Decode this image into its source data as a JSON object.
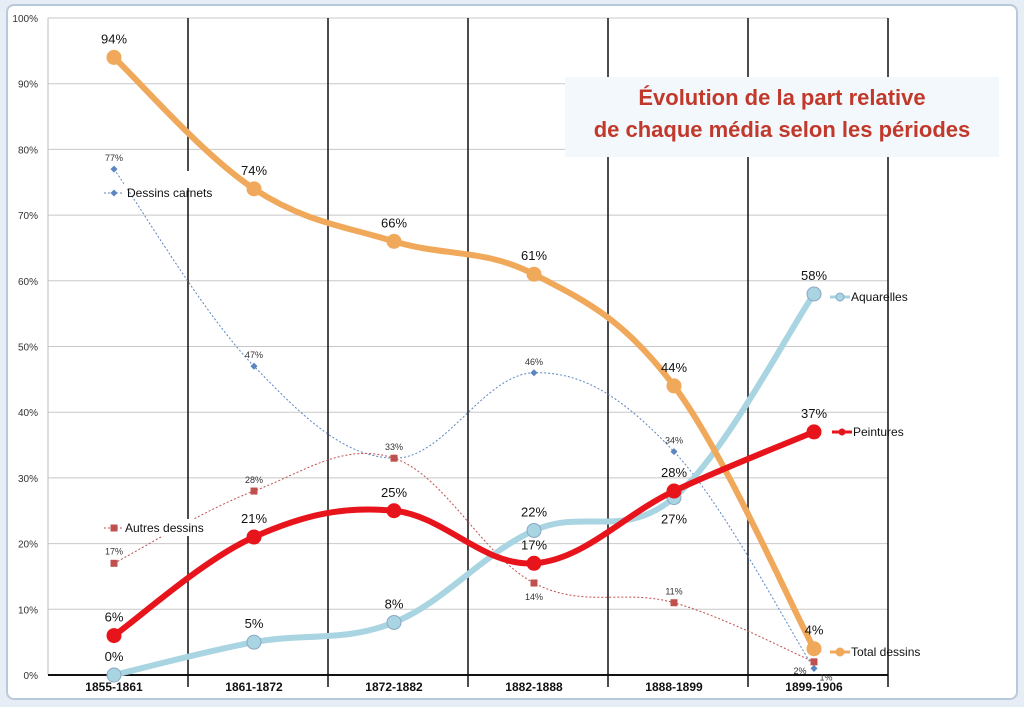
{
  "chart_data": {
    "type": "line",
    "title": "Évolution de la part relative de chaque média selon les périodes",
    "title_lines": [
      "Évolution de la part relative",
      "de chaque média selon les périodes"
    ],
    "xlabel": "",
    "ylabel": "",
    "ylim": [
      0,
      100
    ],
    "y_ticks": [
      "0%",
      "10%",
      "20%",
      "30%",
      "40%",
      "50%",
      "60%",
      "70%",
      "80%",
      "90%",
      "100%"
    ],
    "grid": true,
    "categories": [
      "1855-1861",
      "1861-1872",
      "1872-1882",
      "1882-1888",
      "1888-1899",
      "1899-1906"
    ],
    "series": [
      {
        "name": "Total dessins",
        "color": "#f0a85a",
        "style": "thick",
        "values": [
          94,
          74,
          66,
          61,
          44,
          4
        ],
        "labels": [
          "94%",
          "74%",
          "66%",
          "61%",
          "44%",
          "4%"
        ]
      },
      {
        "name": "Aquarelles",
        "color": "#a9d4e2",
        "style": "thick",
        "values": [
          0,
          5,
          8,
          22,
          27,
          58
        ],
        "labels": [
          "0%",
          "5%",
          "8%",
          "22%",
          "27%",
          "58%"
        ]
      },
      {
        "name": "Peintures",
        "color": "#e8141c",
        "style": "thick",
        "values": [
          6,
          21,
          25,
          17,
          28,
          37
        ],
        "labels": [
          "6%",
          "21%",
          "25%",
          "17%",
          "28%",
          "37%"
        ]
      },
      {
        "name": "Dessins carnets",
        "color": "#5b86c0",
        "style": "dotted",
        "values": [
          77,
          47,
          33,
          46,
          34,
          1
        ],
        "labels": [
          "77%",
          "47%",
          "",
          "46%",
          "34%",
          "1%"
        ]
      },
      {
        "name": "Autres dessins",
        "color": "#c0504d",
        "style": "dotted",
        "values": [
          17,
          28,
          33,
          14,
          11,
          2
        ],
        "labels": [
          "17%",
          "28%",
          "33%",
          "14%",
          "11%",
          "2%"
        ]
      }
    ]
  }
}
